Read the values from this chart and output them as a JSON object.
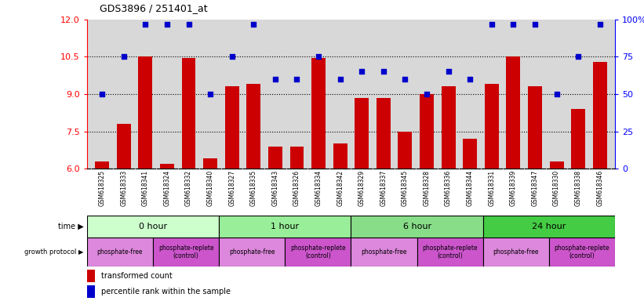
{
  "title": "GDS3896 / 251401_at",
  "samples": [
    "GSM618325",
    "GSM618333",
    "GSM618341",
    "GSM618324",
    "GSM618332",
    "GSM618340",
    "GSM618327",
    "GSM618335",
    "GSM618343",
    "GSM618326",
    "GSM618334",
    "GSM618342",
    "GSM618329",
    "GSM618337",
    "GSM618345",
    "GSM618328",
    "GSM618336",
    "GSM618344",
    "GSM618331",
    "GSM618339",
    "GSM618347",
    "GSM618330",
    "GSM618338",
    "GSM618346"
  ],
  "bar_values": [
    6.3,
    7.8,
    10.5,
    6.2,
    10.45,
    6.4,
    9.3,
    9.4,
    6.9,
    6.9,
    10.45,
    7.0,
    8.85,
    8.85,
    7.5,
    9.0,
    9.3,
    7.2,
    9.4,
    10.5,
    9.3,
    6.3,
    8.4,
    10.3
  ],
  "dot_values": [
    50,
    75,
    97,
    97,
    97,
    50,
    75,
    97,
    60,
    60,
    75,
    60,
    65,
    65,
    60,
    50,
    65,
    60,
    97,
    97,
    97,
    50,
    75,
    97
  ],
  "ylim_left": [
    6,
    12
  ],
  "ylim_right": [
    0,
    100
  ],
  "yticks_left": [
    6,
    7.5,
    9,
    10.5,
    12
  ],
  "yticks_right": [
    0,
    25,
    50,
    75,
    100
  ],
  "bar_color": "#cc0000",
  "dot_color": "#0000cc",
  "time_groups": [
    {
      "label": "0 hour",
      "start": 0,
      "end": 5,
      "color": "#ccffcc"
    },
    {
      "label": "1 hour",
      "start": 6,
      "end": 11,
      "color": "#99ee99"
    },
    {
      "label": "6 hour",
      "start": 12,
      "end": 17,
      "color": "#88dd88"
    },
    {
      "label": "24 hour",
      "start": 18,
      "end": 23,
      "color": "#44cc44"
    }
  ],
  "protocol_groups": [
    {
      "label": "phosphate-free",
      "start": 0,
      "end": 2,
      "color": "#dd88dd"
    },
    {
      "label": "phosphate-replete\n(control)",
      "start": 3,
      "end": 5,
      "color": "#cc55cc"
    },
    {
      "label": "phosphate-free",
      "start": 6,
      "end": 8,
      "color": "#dd88dd"
    },
    {
      "label": "phosphate-replete\n(control)",
      "start": 9,
      "end": 11,
      "color": "#cc55cc"
    },
    {
      "label": "phosphate-free",
      "start": 12,
      "end": 14,
      "color": "#dd88dd"
    },
    {
      "label": "phosphate-replete\n(control)",
      "start": 15,
      "end": 17,
      "color": "#cc55cc"
    },
    {
      "label": "phosphate-free",
      "start": 18,
      "end": 20,
      "color": "#dd88dd"
    },
    {
      "label": "phosphate-replete\n(control)",
      "start": 21,
      "end": 23,
      "color": "#cc55cc"
    }
  ],
  "legend_bar_color": "#cc0000",
  "legend_dot_color": "#0000cc",
  "legend_bar_label": "transformed count",
  "legend_dot_label": "percentile rank within the sample",
  "bg_color": "#d8d8d8"
}
